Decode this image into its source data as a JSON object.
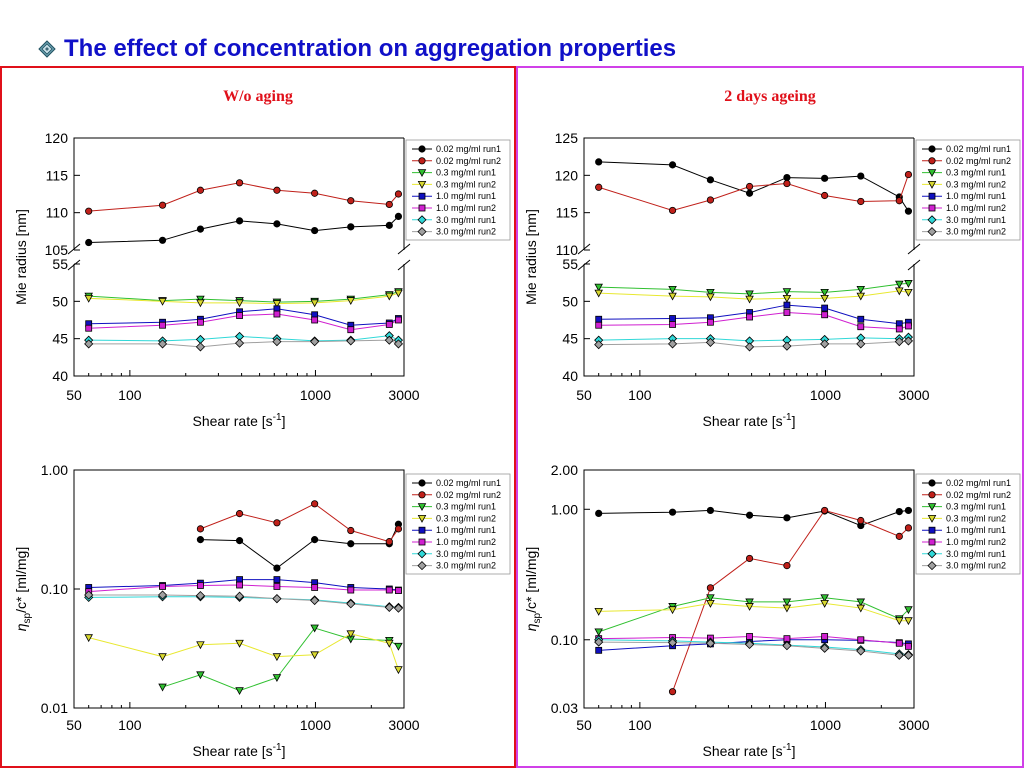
{
  "title": "The effect of concentration on aggregation properties",
  "panels": {
    "left": {
      "title": "W/o aging"
    },
    "right": {
      "title": "2 days ageing"
    }
  },
  "colors": {
    "title": "#1010c8",
    "panel_title": "#e0101a",
    "left_border": "#e0101a",
    "right_border": "#d040e8"
  },
  "legend_series": [
    {
      "name": "0.02 mg/ml run1",
      "marker": "circle",
      "fill": "#000000",
      "line": "#000000"
    },
    {
      "name": "0.02 mg/ml run2",
      "marker": "circle",
      "fill": "#c0201a",
      "line": "#c0201a"
    },
    {
      "name": "0.3 mg/ml run1",
      "marker": "triangle-down",
      "fill": "#30c030",
      "line": "#30c030"
    },
    {
      "name": "0.3 mg/ml run2",
      "marker": "triangle-down",
      "fill": "#d8d830",
      "line": "#e8e830"
    },
    {
      "name": "1.0 mg/ml run1",
      "marker": "square",
      "fill": "#1010c0",
      "line": "#1010c0"
    },
    {
      "name": "1.0 mg/ml run2",
      "marker": "square",
      "fill": "#d020d0",
      "line": "#d020d0"
    },
    {
      "name": "3.0 mg/ml run1",
      "marker": "diamond",
      "fill": "#30d8d8",
      "line": "#30d8d8"
    },
    {
      "name": "3.0 mg/ml run2",
      "marker": "diamond",
      "fill": "#a0a0a0",
      "line": "#a0a0a0"
    }
  ],
  "chart_data": [
    {
      "id": "left-top",
      "type": "line",
      "xscale": "log",
      "xlim": [
        50,
        3000
      ],
      "x_ticks": [
        "50",
        "100",
        "1000",
        "3000"
      ],
      "xlabel": "Shear rate [s",
      "xlabel_sup": "-1",
      "xlabel_end": "]",
      "ylabel": "Mie radius [nm]",
      "broken_axis": {
        "upper_ylim": [
          105,
          120
        ],
        "upper_ticks": [
          "105",
          "110",
          "115",
          "120"
        ],
        "lower_ylim": [
          40,
          55
        ],
        "lower_ticks": [
          "40",
          "45",
          "50",
          "55"
        ]
      },
      "series": [
        {
          "name": "0.02 mg/ml run1",
          "x": [
            60,
            150,
            240,
            390,
            620,
            990,
            1550,
            2500,
            2800
          ],
          "y": [
            106,
            106.3,
            107.8,
            108.9,
            108.5,
            107.6,
            108.1,
            108.3,
            109.5
          ]
        },
        {
          "name": "0.02 mg/ml run2",
          "x": [
            60,
            150,
            240,
            390,
            620,
            990,
            1550,
            2500,
            2800
          ],
          "y": [
            110.2,
            111,
            113,
            114,
            113,
            112.6,
            111.6,
            111.1,
            112.5
          ]
        },
        {
          "name": "0.3 mg/ml run1",
          "x": [
            60,
            150,
            240,
            390,
            620,
            990,
            1550,
            2500,
            2800
          ],
          "y": [
            50.7,
            50.1,
            50.3,
            50.1,
            49.9,
            50,
            50.3,
            50.9,
            51.3
          ]
        },
        {
          "name": "0.3 mg/ml run2",
          "x": [
            60,
            150,
            240,
            390,
            620,
            990,
            1550,
            2500,
            2800
          ],
          "y": [
            50.4,
            50,
            49.8,
            49.8,
            49.7,
            49.8,
            50.1,
            50.7,
            51.1
          ]
        },
        {
          "name": "1.0 mg/ml run1",
          "x": [
            60,
            150,
            240,
            390,
            620,
            990,
            1550,
            2500,
            2800
          ],
          "y": [
            47,
            47.2,
            47.6,
            48.6,
            49,
            48.2,
            46.8,
            47.1,
            47.7
          ]
        },
        {
          "name": "1.0 mg/ml run2",
          "x": [
            60,
            150,
            240,
            390,
            620,
            990,
            1550,
            2500,
            2800
          ],
          "y": [
            46.4,
            46.8,
            47.2,
            48.1,
            48.3,
            47.5,
            46.2,
            46.9,
            47.5
          ]
        },
        {
          "name": "3.0 mg/ml run1",
          "x": [
            60,
            150,
            240,
            390,
            620,
            990,
            1550,
            2500,
            2800
          ],
          "y": [
            44.8,
            44.7,
            44.9,
            45.3,
            45,
            44.7,
            44.8,
            45.4,
            44.8
          ]
        },
        {
          "name": "3.0 mg/ml run2",
          "x": [
            60,
            150,
            240,
            390,
            620,
            990,
            1550,
            2500,
            2800
          ],
          "y": [
            44.3,
            44.3,
            43.9,
            44.4,
            44.6,
            44.6,
            44.7,
            44.8,
            44.3
          ]
        }
      ]
    },
    {
      "id": "left-bottom",
      "type": "line",
      "xscale": "log",
      "xlim": [
        50,
        3000
      ],
      "yscale": "log",
      "ylim": [
        0.01,
        1.0
      ],
      "x_ticks": [
        "50",
        "100",
        "1000",
        "3000"
      ],
      "y_ticks": [
        "0.01",
        "0.10",
        "1.00"
      ],
      "xlabel": "Shear rate [s",
      "xlabel_sup": "-1",
      "xlabel_end": "]",
      "ylabel": "/c* [ml/mg]",
      "ylabel_symbol": "η",
      "ylabel_sub": "sp",
      "series": [
        {
          "name": "0.02 mg/ml run1",
          "x": [
            240,
            390,
            620,
            990,
            1550,
            2500,
            2800
          ],
          "y": [
            0.26,
            0.255,
            0.15,
            0.26,
            0.24,
            0.24,
            0.35
          ]
        },
        {
          "name": "0.02 mg/ml run2",
          "x": [
            240,
            390,
            620,
            990,
            1550,
            2500,
            2800
          ],
          "y": [
            0.32,
            0.43,
            0.36,
            0.52,
            0.31,
            0.25,
            0.32
          ]
        },
        {
          "name": "0.3 mg/ml run1",
          "x": [
            150,
            240,
            390,
            620,
            990,
            1550,
            2500,
            2800
          ],
          "y": [
            0.015,
            0.019,
            0.014,
            0.018,
            0.047,
            0.038,
            0.037,
            0.033
          ]
        },
        {
          "name": "0.3 mg/ml run2",
          "x": [
            60,
            150,
            240,
            390,
            620,
            990,
            1550,
            2500,
            2800
          ],
          "y": [
            0.039,
            0.027,
            0.034,
            0.035,
            0.027,
            0.028,
            0.042,
            0.035,
            0.021
          ]
        },
        {
          "name": "1.0 mg/ml run1",
          "x": [
            60,
            150,
            240,
            390,
            620,
            990,
            1550,
            2500,
            2800
          ],
          "y": [
            0.103,
            0.107,
            0.112,
            0.12,
            0.12,
            0.113,
            0.103,
            0.1,
            0.098
          ]
        },
        {
          "name": "1.0 mg/ml run2",
          "x": [
            60,
            150,
            240,
            390,
            620,
            990,
            1550,
            2500,
            2800
          ],
          "y": [
            0.095,
            0.105,
            0.107,
            0.108,
            0.105,
            0.103,
            0.098,
            0.098,
            0.097
          ]
        },
        {
          "name": "3.0 mg/ml run1",
          "x": [
            60,
            150,
            240,
            390,
            620,
            990,
            1550,
            2500,
            2800
          ],
          "y": [
            0.085,
            0.086,
            0.086,
            0.085,
            0.083,
            0.081,
            0.076,
            0.071,
            0.07
          ]
        },
        {
          "name": "3.0 mg/ml run2",
          "x": [
            60,
            150,
            240,
            390,
            620,
            990,
            1550,
            2500,
            2800
          ],
          "y": [
            0.089,
            0.089,
            0.088,
            0.087,
            0.083,
            0.08,
            0.075,
            0.07,
            0.069
          ]
        }
      ]
    },
    {
      "id": "right-top",
      "type": "line",
      "xscale": "log",
      "xlim": [
        50,
        3000
      ],
      "x_ticks": [
        "50",
        "100",
        "1000",
        "3000"
      ],
      "xlabel": "Shear rate [s",
      "xlabel_sup": "-1",
      "xlabel_end": "]",
      "ylabel": "Mie radius [nm]",
      "broken_axis": {
        "upper_ylim": [
          110,
          125
        ],
        "upper_ticks": [
          "110",
          "115",
          "120",
          "125"
        ],
        "lower_ylim": [
          40,
          55
        ],
        "lower_ticks": [
          "40",
          "45",
          "50",
          "55"
        ]
      },
      "series": [
        {
          "name": "0.02 mg/ml run1",
          "x": [
            60,
            150,
            240,
            390,
            620,
            990,
            1550,
            2500,
            2800
          ],
          "y": [
            121.8,
            121.4,
            119.4,
            117.6,
            119.7,
            119.6,
            119.9,
            117.1,
            115.2
          ]
        },
        {
          "name": "0.02 mg/ml run2",
          "x": [
            60,
            150,
            240,
            390,
            620,
            990,
            1550,
            2500,
            2800
          ],
          "y": [
            118.4,
            115.3,
            116.7,
            118.5,
            118.9,
            117.3,
            116.5,
            116.6,
            120.1
          ]
        },
        {
          "name": "0.3 mg/ml run1",
          "x": [
            60,
            150,
            240,
            390,
            620,
            990,
            1550,
            2500,
            2800
          ],
          "y": [
            51.9,
            51.6,
            51.2,
            51,
            51.3,
            51.2,
            51.6,
            52.3,
            52.4
          ]
        },
        {
          "name": "0.3 mg/ml run2",
          "x": [
            60,
            150,
            240,
            390,
            620,
            990,
            1550,
            2500,
            2800
          ],
          "y": [
            51.1,
            50.7,
            50.6,
            50.3,
            50.4,
            50.4,
            50.7,
            51.4,
            51.2
          ]
        },
        {
          "name": "1.0 mg/ml run1",
          "x": [
            60,
            150,
            240,
            390,
            620,
            990,
            1550,
            2500,
            2800
          ],
          "y": [
            47.6,
            47.7,
            47.8,
            48.5,
            49.5,
            49.1,
            47.6,
            47,
            47.2
          ]
        },
        {
          "name": "1.0 mg/ml run2",
          "x": [
            60,
            150,
            240,
            390,
            620,
            990,
            1550,
            2500,
            2800
          ],
          "y": [
            46.8,
            46.9,
            47.2,
            47.9,
            48.5,
            48.2,
            46.6,
            46.3,
            46.7
          ]
        },
        {
          "name": "3.0 mg/ml run1",
          "x": [
            60,
            150,
            240,
            390,
            620,
            990,
            1550,
            2500,
            2800
          ],
          "y": [
            44.8,
            45,
            45,
            44.7,
            44.8,
            44.9,
            45.1,
            45,
            45.2
          ]
        },
        {
          "name": "3.0 mg/ml run2",
          "x": [
            60,
            150,
            240,
            390,
            620,
            990,
            1550,
            2500,
            2800
          ],
          "y": [
            44.2,
            44.3,
            44.5,
            43.9,
            44,
            44.3,
            44.3,
            44.6,
            44.7
          ]
        }
      ]
    },
    {
      "id": "right-bottom",
      "type": "line",
      "xscale": "log",
      "xlim": [
        50,
        3000
      ],
      "yscale": "log",
      "ylim": [
        0.03,
        2.0
      ],
      "x_ticks": [
        "50",
        "100",
        "1000",
        "3000"
      ],
      "y_ticks": [
        "0.03",
        "0.10",
        "1.00",
        "2.00"
      ],
      "xlabel": "Shear rate [s",
      "xlabel_sup": "-1",
      "xlabel_end": "]",
      "ylabel": "/c* [ml/mg]",
      "ylabel_symbol": "η",
      "ylabel_sub": "sp",
      "series": [
        {
          "name": "0.02 mg/ml run1",
          "x": [
            60,
            150,
            240,
            390,
            620,
            990,
            1550,
            2500,
            2800
          ],
          "y": [
            0.93,
            0.95,
            0.98,
            0.9,
            0.86,
            0.97,
            0.75,
            0.96,
            0.98
          ]
        },
        {
          "name": "0.02 mg/ml run2",
          "x": [
            150,
            240,
            390,
            620,
            990,
            1550,
            2500,
            2800
          ],
          "y": [
            0.04,
            0.25,
            0.42,
            0.37,
            0.98,
            0.82,
            0.62,
            0.72
          ]
        },
        {
          "name": "0.3 mg/ml run1",
          "x": [
            60,
            150,
            240,
            390,
            620,
            990,
            1550,
            2500,
            2800
          ],
          "y": [
            0.115,
            0.18,
            0.21,
            0.195,
            0.195,
            0.21,
            0.195,
            0.145,
            0.17
          ]
        },
        {
          "name": "0.3 mg/ml run2",
          "x": [
            60,
            150,
            240,
            390,
            620,
            990,
            1550,
            2500,
            2800
          ],
          "y": [
            0.165,
            0.17,
            0.19,
            0.18,
            0.175,
            0.19,
            0.175,
            0.14,
            0.14
          ]
        },
        {
          "name": "1.0 mg/ml run1",
          "x": [
            60,
            150,
            240,
            390,
            620,
            990,
            1550,
            2500,
            2800
          ],
          "y": [
            0.083,
            0.09,
            0.093,
            0.097,
            0.1,
            0.1,
            0.099,
            0.095,
            0.093
          ]
        },
        {
          "name": "1.0 mg/ml run2",
          "x": [
            60,
            150,
            240,
            390,
            620,
            990,
            1550,
            2500,
            2800
          ],
          "y": [
            0.102,
            0.104,
            0.103,
            0.106,
            0.102,
            0.106,
            0.1,
            0.094,
            0.089
          ]
        },
        {
          "name": "3.0 mg/ml run1",
          "x": [
            60,
            150,
            240,
            390,
            620,
            990,
            1550,
            2500,
            2800
          ],
          "y": [
            0.1,
            0.098,
            0.096,
            0.094,
            0.091,
            0.088,
            0.084,
            0.078,
            0.077
          ]
        },
        {
          "name": "3.0 mg/ml run2",
          "x": [
            60,
            150,
            240,
            390,
            620,
            990,
            1550,
            2500,
            2800
          ],
          "y": [
            0.096,
            0.095,
            0.094,
            0.092,
            0.09,
            0.086,
            0.082,
            0.076,
            0.076
          ]
        }
      ]
    }
  ]
}
